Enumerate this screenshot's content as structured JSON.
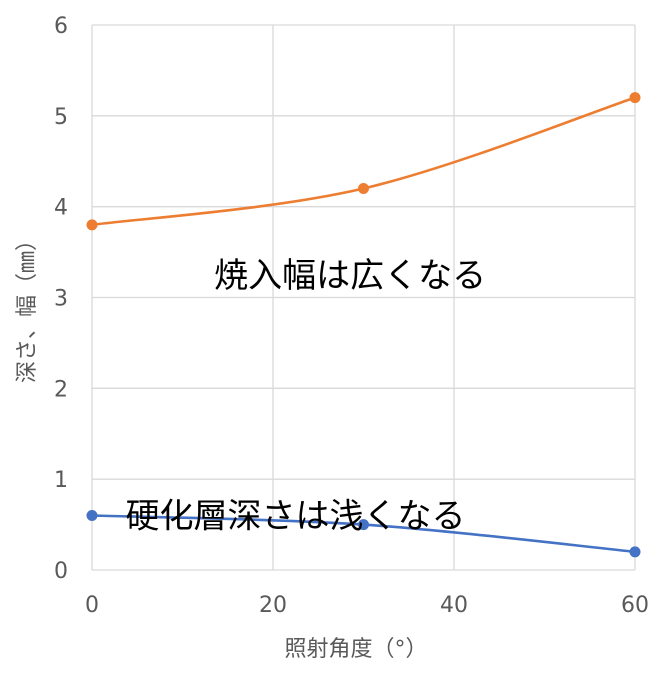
{
  "chart_data": {
    "type": "line",
    "xlabel": "照射角度（°）",
    "ylabel": "深さ、幅（㎜）",
    "xlim": [
      0,
      60
    ],
    "ylim": [
      0,
      6
    ],
    "xticks": [
      "0",
      "20",
      "40",
      "60"
    ],
    "yticks": [
      "0",
      "1",
      "2",
      "3",
      "4",
      "5",
      "6"
    ],
    "grid": true,
    "legend": "none",
    "series": [
      {
        "color": "#ed7d31",
        "smooth": true,
        "points": [
          {
            "x": 0,
            "y": 3.8
          },
          {
            "x": 30,
            "y": 4.2
          },
          {
            "x": 60,
            "y": 5.2
          }
        ]
      },
      {
        "color": "#4472c4",
        "smooth": true,
        "points": [
          {
            "x": 0,
            "y": 0.6
          },
          {
            "x": 30,
            "y": 0.5
          },
          {
            "x": 60,
            "y": 0.2
          }
        ]
      }
    ],
    "annotations": [
      {
        "text": "焼入幅は広くなる",
        "x": 13.5,
        "y": 3.25
      },
      {
        "text": "硬化層深さは浅くなる",
        "x": 3.7,
        "y": 0.6
      }
    ]
  }
}
